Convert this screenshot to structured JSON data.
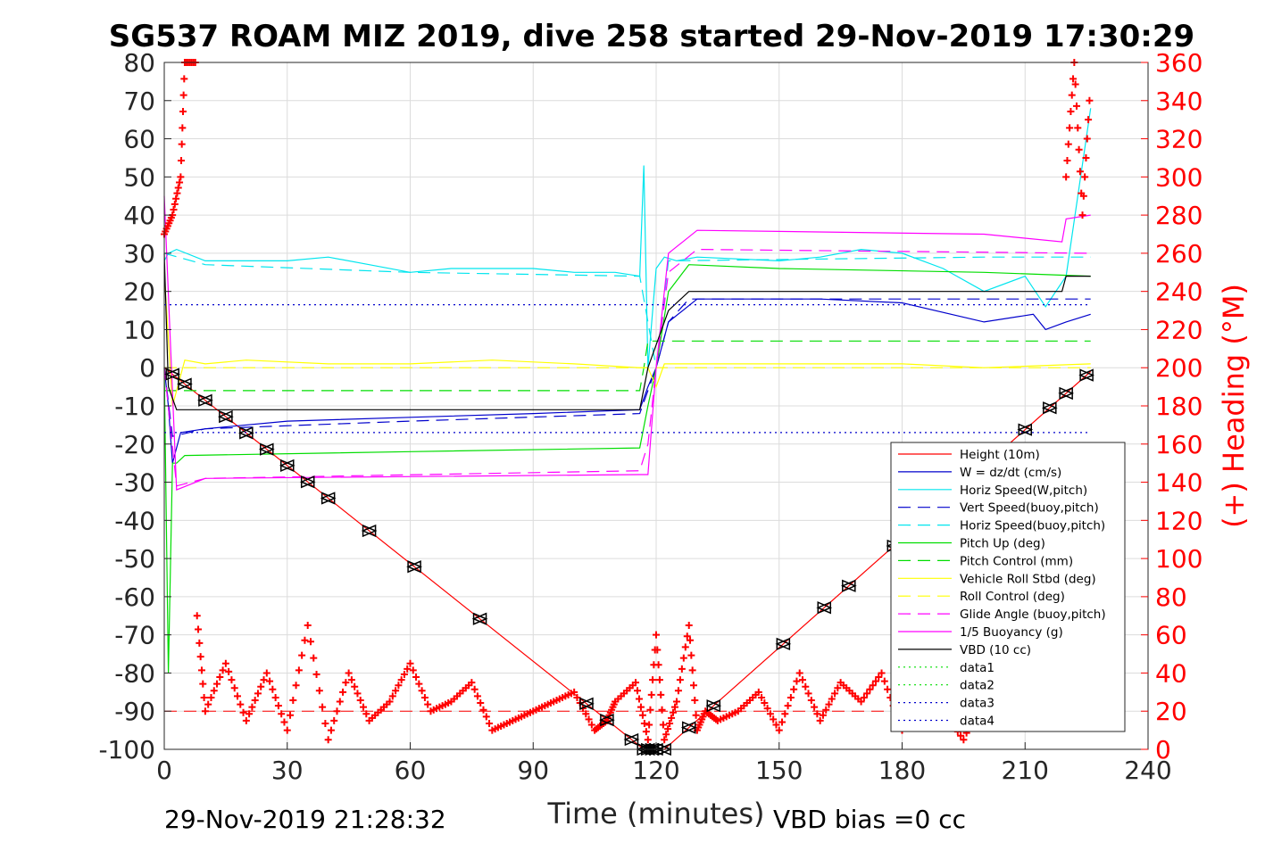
{
  "chart_data": {
    "type": "line",
    "title": "SG537 ROAM MIZ 2019, dive 258 started 29-Nov-2019 17:30:29",
    "xlabel": "Time (minutes)",
    "ylabel": "",
    "ylabel_right": "(+) Heading (°M)",
    "xlim": [
      0,
      240
    ],
    "ylim": [
      -100,
      80
    ],
    "ylim_right": [
      0,
      360
    ],
    "xticks": [
      "0",
      "30",
      "60",
      "90",
      "120",
      "150",
      "180",
      "210",
      "240"
    ],
    "yticks": [
      "80",
      "70",
      "60",
      "50",
      "40",
      "30",
      "20",
      "10",
      "0",
      "-10",
      "-20",
      "-30",
      "-40",
      "-50",
      "-60",
      "-70",
      "-80",
      "-90",
      "-100"
    ],
    "yticks_right": [
      "360",
      "340",
      "320",
      "300",
      "280",
      "260",
      "240",
      "220",
      "200",
      "180",
      "160",
      "140",
      "120",
      "100",
      "80",
      "60",
      "40",
      "20",
      "0"
    ],
    "grid": true,
    "legend_position": "bottom-right",
    "footer_left": "29-Nov-2019 21:28:32",
    "footer_right": "VBD bias =0 cc",
    "series": [
      {
        "name": "Height (10m)",
        "color": "#ff0000",
        "style": "solid",
        "x": [
          0,
          117,
          120,
          122,
          226
        ],
        "y": [
          0,
          -100,
          -100,
          -100,
          -1
        ]
      },
      {
        "name": "W = dz/dt (cm/s)",
        "color": "#0000cc",
        "style": "solid",
        "x": [
          0,
          1,
          2,
          4,
          10,
          30,
          60,
          90,
          116,
          118,
          120,
          123,
          130,
          160,
          180,
          200,
          212,
          215,
          220,
          226
        ],
        "y": [
          0,
          -10,
          -25,
          -17,
          -16,
          -14,
          -13,
          -12,
          -11,
          -5,
          0,
          12,
          18,
          18,
          17,
          12,
          14,
          10,
          12,
          14
        ]
      },
      {
        "name": "Horiz Speed(W,pitch)",
        "color": "#00e5ee",
        "style": "solid",
        "x": [
          0,
          1,
          3,
          10,
          20,
          30,
          40,
          50,
          60,
          70,
          80,
          90,
          100,
          110,
          116,
          117,
          118,
          120,
          122,
          125,
          130,
          150,
          160,
          170,
          180,
          190,
          200,
          210,
          215,
          220,
          226
        ],
        "y": [
          28,
          30,
          31,
          28,
          28,
          28,
          29,
          27,
          25,
          26,
          26,
          26,
          25,
          25,
          24,
          53,
          0,
          26,
          29,
          28,
          29,
          28,
          29,
          31,
          30,
          26,
          20,
          24,
          16,
          24,
          68
        ]
      },
      {
        "name": "Vert Speed(buoy,pitch)",
        "color": "#0000cc",
        "style": "dash",
        "x": [
          0,
          2,
          10,
          60,
          116,
          120,
          123,
          128,
          200,
          226
        ],
        "y": [
          0,
          -18,
          -16,
          -14,
          -12,
          0,
          12,
          18,
          18,
          18
        ]
      },
      {
        "name": "Horiz Speed(buoy,pitch)",
        "color": "#00e5ee",
        "style": "dash",
        "x": [
          0,
          10,
          60,
          116,
          120,
          123,
          200,
          226
        ],
        "y": [
          30,
          27,
          25,
          24,
          0,
          28,
          29,
          29
        ]
      },
      {
        "name": "Pitch Up (deg)",
        "color": "#00dd00",
        "style": "solid",
        "x": [
          0,
          1,
          2,
          3,
          5,
          60,
          116,
          118,
          120,
          123,
          128,
          150,
          200,
          226
        ],
        "y": [
          0,
          -80,
          -25,
          -25,
          -23,
          -22,
          -21,
          -10,
          0,
          20,
          27,
          26,
          25,
          24
        ]
      },
      {
        "name": "Pitch Control (mm)",
        "color": "#00dd00",
        "style": "dash",
        "x": [
          0,
          116,
          117,
          118,
          226
        ],
        "y": [
          -6,
          -6,
          0,
          7,
          7
        ]
      },
      {
        "name": "Vehicle Roll Stbd (deg)",
        "color": "#ffff00",
        "style": "solid",
        "x": [
          0,
          2,
          5,
          10,
          20,
          40,
          60,
          80,
          100,
          116,
          118,
          120,
          122,
          150,
          180,
          200,
          226
        ],
        "y": [
          25,
          -10,
          2,
          1,
          2,
          1,
          1,
          2,
          1,
          0,
          0,
          -5,
          1,
          1,
          1,
          0,
          1
        ]
      },
      {
        "name": "Roll Control (deg)",
        "color": "#ffff00",
        "style": "dash",
        "x": [
          0,
          226
        ],
        "y": [
          0,
          0
        ]
      },
      {
        "name": "Glide Angle (buoy,pitch)",
        "color": "#ff00ff",
        "style": "dash",
        "x": [
          0,
          3,
          10,
          116,
          118,
          120,
          123,
          130,
          226
        ],
        "y": [
          0,
          -31,
          -29,
          -27,
          -20,
          0,
          25,
          31,
          30
        ]
      },
      {
        "name": "1/5 Buoyancy (g)",
        "color": "#ff00ff",
        "style": "solid",
        "x": [
          0,
          3,
          10,
          116,
          118,
          120,
          123,
          130,
          200,
          219,
          220,
          226
        ],
        "y": [
          45,
          -32,
          -29,
          -28,
          -28,
          0,
          30,
          36,
          35,
          33,
          39,
          40
        ]
      },
      {
        "name": "VBD (10 cc)",
        "color": "#000000",
        "style": "solid",
        "x": [
          0,
          1,
          3,
          116,
          118,
          123,
          128,
          219,
          220,
          226
        ],
        "y": [
          30,
          -5,
          -11,
          -11,
          0,
          15,
          20,
          20,
          24,
          24
        ]
      },
      {
        "name": "data1",
        "color": "#00dd00",
        "style": "dot",
        "x": [
          0,
          0
        ],
        "y": [
          null,
          null
        ]
      },
      {
        "name": "data2",
        "color": "#00dd00",
        "style": "dot",
        "x": [
          0,
          0
        ],
        "y": [
          null,
          null
        ]
      },
      {
        "name": "data3",
        "color": "#0000cc",
        "style": "dot",
        "x": [
          0,
          226
        ],
        "y": [
          16.5,
          16.5
        ]
      },
      {
        "name": "data4",
        "color": "#0000cc",
        "style": "dot",
        "x": [
          0,
          226
        ],
        "y": [
          -17,
          -17
        ]
      }
    ],
    "reference_lines": [
      {
        "orientation": "horizontal",
        "y": -90,
        "color": "#ff0000",
        "style": "dash",
        "x": [
          0,
          226
        ]
      }
    ],
    "markers": {
      "name": "depth sample markers",
      "color": "#000000",
      "x": [
        2,
        5,
        10,
        15,
        20,
        25,
        30,
        35,
        40,
        50,
        61,
        77,
        103,
        108,
        114,
        117,
        118,
        119,
        120,
        122,
        128,
        134,
        151,
        161,
        167,
        178,
        201,
        210,
        216,
        220,
        225
      ]
    },
    "heading": {
      "name": "Heading",
      "color": "#ff0000",
      "axis": "right",
      "x": [
        0,
        2,
        4,
        5,
        8,
        10,
        15,
        20,
        25,
        30,
        35,
        40,
        45,
        50,
        55,
        60,
        65,
        70,
        75,
        80,
        85,
        90,
        95,
        100,
        105,
        108,
        110,
        115,
        118,
        120,
        122,
        125,
        128,
        130,
        132,
        135,
        140,
        145,
        150,
        155,
        160,
        165,
        170,
        175,
        180,
        185,
        190,
        195,
        200,
        205,
        210,
        215,
        218,
        220,
        222,
        224,
        226
      ],
      "y": [
        270,
        280,
        300,
        360,
        70,
        20,
        45,
        15,
        40,
        10,
        65,
        5,
        40,
        15,
        25,
        45,
        20,
        25,
        35,
        10,
        15,
        20,
        25,
        30,
        10,
        15,
        25,
        35,
        5,
        60,
        5,
        25,
        65,
        10,
        20,
        15,
        20,
        30,
        10,
        40,
        15,
        35,
        25,
        40,
        10,
        30,
        20,
        5,
        30,
        20,
        35,
        15,
        25,
        300,
        360,
        280,
        350
      ]
    }
  }
}
